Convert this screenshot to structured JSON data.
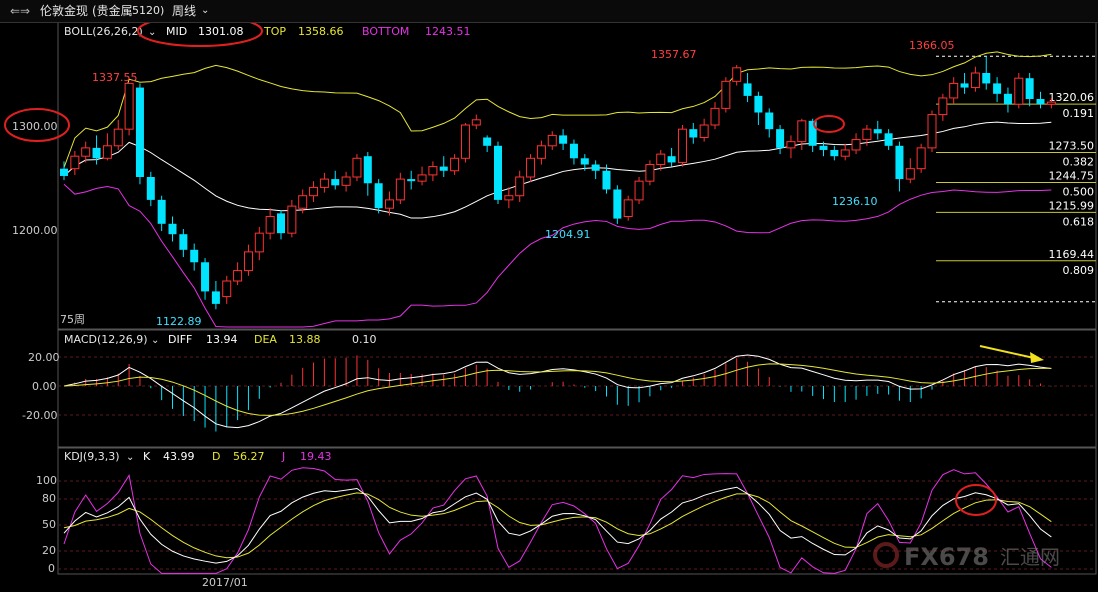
{
  "header": {
    "nav_arrows": "⇐⇒",
    "symbol_name": "伦敦金现",
    "market_name": "(贵金属",
    "market_code": "5120)",
    "period_label": "周线"
  },
  "indicators": {
    "boll": {
      "label": "BOLL(26,26,2)",
      "mid_label": "MID",
      "mid_value": "1301.08",
      "top_label": "TOP",
      "top_value": "1358.66",
      "bottom_label": "BOTTOM",
      "bottom_value": "1243.51"
    },
    "macd": {
      "label": "MACD(12,26,9)",
      "diff_label": "DIFF",
      "diff_value": "13.94",
      "dea_label": "DEA",
      "dea_value": "13.88",
      "macd_value": "0.10"
    },
    "kdj": {
      "label": "KDJ(9,3,3)",
      "k_label": "K",
      "k_value": "43.99",
      "d_label": "D",
      "d_value": "56.27",
      "j_label": "J",
      "j_value": "19.43"
    }
  },
  "price_annotations": {
    "high_1": "1337.55",
    "high_2": "1357.67",
    "high_3": "1366.05",
    "low_1": "1122.89",
    "low_2": "1204.91",
    "low_3": "1236.10",
    "bars_count_label": "75周"
  },
  "fib_levels": [
    {
      "price": "1320.06",
      "ratio": "0.191"
    },
    {
      "price": "1273.50",
      "ratio": "0.382"
    },
    {
      "price": "1244.75",
      "ratio": "0.500"
    },
    {
      "price": "1215.99",
      "ratio": "0.618"
    },
    {
      "price": "1169.44",
      "ratio": "0.809"
    }
  ],
  "axis": {
    "price_ticks": [
      "1300.00",
      "1200.00"
    ],
    "macd_ticks": [
      "20.00",
      "0.00",
      "-20.00"
    ],
    "kdj_ticks": [
      "100",
      "80",
      "50",
      "20",
      "0"
    ],
    "date_label": "2017/01"
  },
  "watermark": {
    "brand": "FX678",
    "brand_cn": "汇通网"
  },
  "colors": {
    "up": "#ff3232",
    "down": "#00e4ff",
    "boll_mid": "#ffffff",
    "boll_top": "#e6e632",
    "boll_bottom": "#e632e6",
    "fib": "#c8c832",
    "annotation_circle": "#e02020",
    "arrow": "#f0e020"
  },
  "chart_data": {
    "type": "candlestick",
    "price_scale": {
      "labels": [
        1300,
        1200
      ]
    },
    "candles": [
      [
        1258,
        1251,
        1265,
        1247
      ],
      [
        1258,
        1270,
        1275,
        1252
      ],
      [
        1270,
        1278,
        1284,
        1264
      ],
      [
        1278,
        1268,
        1290,
        1262
      ],
      [
        1268,
        1280,
        1292,
        1266
      ],
      [
        1280,
        1296,
        1305,
        1276
      ],
      [
        1296,
        1340,
        1337.55,
        1290
      ],
      [
        1336,
        1250,
        1340,
        1243
      ],
      [
        1250,
        1228,
        1255,
        1222
      ],
      [
        1228,
        1205,
        1232,
        1198
      ],
      [
        1205,
        1195,
        1212,
        1188
      ],
      [
        1195,
        1180,
        1200,
        1173
      ],
      [
        1180,
        1168,
        1186,
        1160
      ],
      [
        1168,
        1140,
        1172,
        1132
      ],
      [
        1140,
        1128,
        1150,
        1122.89
      ],
      [
        1135,
        1150,
        1155,
        1128
      ],
      [
        1150,
        1160,
        1168,
        1146
      ],
      [
        1160,
        1178,
        1185,
        1155
      ],
      [
        1178,
        1196,
        1202,
        1170
      ],
      [
        1196,
        1212,
        1220,
        1190
      ],
      [
        1215,
        1196,
        1218,
        1190
      ],
      [
        1196,
        1222,
        1228,
        1192
      ],
      [
        1220,
        1232,
        1238,
        1215
      ],
      [
        1232,
        1240,
        1246,
        1226
      ],
      [
        1240,
        1248,
        1254,
        1235
      ],
      [
        1248,
        1242,
        1256,
        1238
      ],
      [
        1242,
        1250,
        1255,
        1236
      ],
      [
        1250,
        1268,
        1272,
        1246
      ],
      [
        1270,
        1244,
        1274,
        1232
      ],
      [
        1244,
        1220,
        1248,
        1215
      ],
      [
        1220,
        1228,
        1236,
        1213
      ],
      [
        1228,
        1248,
        1254,
        1224
      ],
      [
        1248,
        1246,
        1256,
        1238
      ],
      [
        1246,
        1252,
        1260,
        1242
      ],
      [
        1252,
        1260,
        1265,
        1246
      ],
      [
        1260,
        1256,
        1270,
        1250
      ],
      [
        1256,
        1268,
        1272,
        1252
      ],
      [
        1268,
        1300,
        1302,
        1264
      ],
      [
        1300,
        1305,
        1310,
        1296
      ],
      [
        1288,
        1280,
        1290,
        1274
      ],
      [
        1280,
        1228,
        1284,
        1224
      ],
      [
        1228,
        1232,
        1240,
        1220
      ],
      [
        1232,
        1250,
        1256,
        1226
      ],
      [
        1250,
        1268,
        1272,
        1245
      ],
      [
        1268,
        1280,
        1285,
        1262
      ],
      [
        1280,
        1290,
        1294,
        1276
      ],
      [
        1290,
        1282,
        1296,
        1276
      ],
      [
        1282,
        1268,
        1286,
        1262
      ],
      [
        1268,
        1262,
        1272,
        1256
      ],
      [
        1262,
        1256,
        1266,
        1248
      ],
      [
        1256,
        1238,
        1262,
        1234
      ],
      [
        1238,
        1210,
        1242,
        1204.91
      ],
      [
        1212,
        1228,
        1232,
        1208
      ],
      [
        1228,
        1246,
        1250,
        1224
      ],
      [
        1246,
        1262,
        1266,
        1242
      ],
      [
        1262,
        1272,
        1276,
        1256
      ],
      [
        1270,
        1264,
        1278,
        1260
      ],
      [
        1264,
        1296,
        1300,
        1260
      ],
      [
        1296,
        1288,
        1302,
        1282
      ],
      [
        1288,
        1300,
        1306,
        1284
      ],
      [
        1300,
        1316,
        1322,
        1296
      ],
      [
        1316,
        1342,
        1346,
        1312
      ],
      [
        1342,
        1355,
        1357.67,
        1338
      ],
      [
        1340,
        1328,
        1350,
        1322
      ],
      [
        1328,
        1312,
        1332,
        1300
      ],
      [
        1312,
        1296,
        1316,
        1288
      ],
      [
        1296,
        1278,
        1300,
        1272
      ],
      [
        1278,
        1284,
        1290,
        1268
      ],
      [
        1284,
        1304,
        1306,
        1276
      ],
      [
        1304,
        1280,
        1306,
        1274
      ],
      [
        1280,
        1276,
        1284,
        1270
      ],
      [
        1276,
        1270,
        1280,
        1266
      ],
      [
        1270,
        1276,
        1282,
        1266
      ],
      [
        1276,
        1286,
        1292,
        1272
      ],
      [
        1286,
        1296,
        1300,
        1280
      ],
      [
        1296,
        1292,
        1304,
        1286
      ],
      [
        1292,
        1280,
        1296,
        1276
      ],
      [
        1280,
        1248,
        1284,
        1236.1
      ],
      [
        1248,
        1258,
        1268,
        1244
      ],
      [
        1258,
        1278,
        1282,
        1254
      ],
      [
        1278,
        1310,
        1314,
        1274
      ],
      [
        1310,
        1326,
        1330,
        1304
      ],
      [
        1326,
        1340,
        1346,
        1320
      ],
      [
        1340,
        1336,
        1350,
        1330
      ],
      [
        1336,
        1350,
        1356,
        1332
      ],
      [
        1350,
        1340,
        1366.05,
        1334
      ],
      [
        1340,
        1330,
        1346,
        1322
      ],
      [
        1330,
        1320,
        1336,
        1312
      ],
      [
        1320,
        1345,
        1350,
        1316
      ],
      [
        1345,
        1325,
        1350,
        1318
      ],
      [
        1325,
        1320,
        1332,
        1316
      ],
      [
        1320,
        1322,
        1326,
        1316
      ]
    ],
    "macd_hist_last": 0.1,
    "kdj_last": {
      "K": 43.99,
      "D": 56.27,
      "J": 19.43
    }
  }
}
